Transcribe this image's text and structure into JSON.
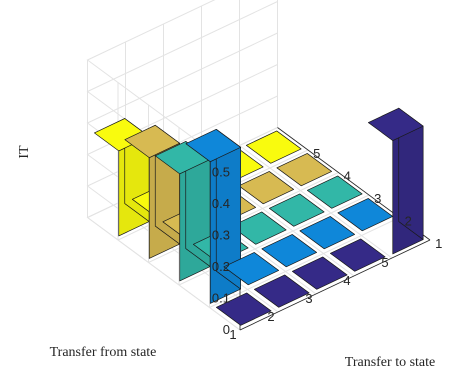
{
  "chart_data": {
    "type": "bar3d",
    "zlabel": "IT",
    "xlabel": "Transfer to state",
    "ylabel": "Transfer from state",
    "x_ticks": [
      "1",
      "2",
      "3",
      "4",
      "5"
    ],
    "y_ticks": [
      "1",
      "2",
      "3",
      "4",
      "5"
    ],
    "z_ticks": [
      "0",
      "0.1",
      "0.2",
      "0.3",
      "0.4",
      "0.5"
    ],
    "zlim": [
      0,
      0.5
    ],
    "grid": true,
    "column_colors": [
      "#352a87",
      "#0f87d9",
      "#32b7a7",
      "#d7ba52",
      "#f9fb0e"
    ],
    "matrix": [
      [
        0,
        0.45,
        0.34,
        0.32,
        0.27
      ],
      [
        0,
        0,
        0,
        0,
        0
      ],
      [
        0,
        0,
        0,
        0,
        0
      ],
      [
        0,
        0,
        0,
        0,
        0
      ],
      [
        0.36,
        0,
        0,
        0,
        0
      ]
    ]
  }
}
